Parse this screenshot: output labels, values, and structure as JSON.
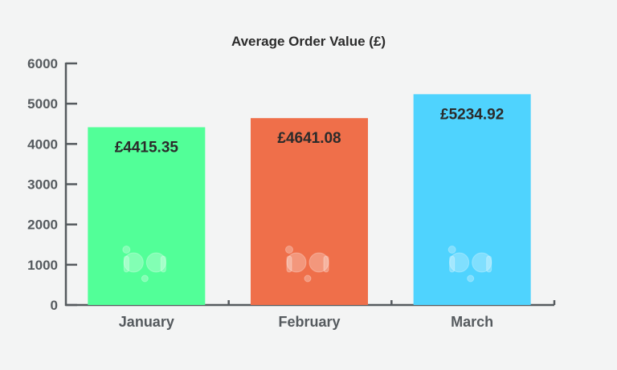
{
  "colors": {
    "background": "#f3f4f4",
    "axis": "#555a5e",
    "text_dark": "#2b2b2b",
    "bar_colors": [
      "#52ff98",
      "#ef6f4a",
      "#4fd3fe"
    ]
  },
  "watermark_icon": "bp-logo-icon",
  "chart_data": {
    "type": "bar",
    "title": "Average Order Value (£)",
    "xlabel": "",
    "ylabel": "",
    "categories": [
      "January",
      "February",
      "March"
    ],
    "values": [
      4415.35,
      4641.08,
      5234.92
    ],
    "data_labels": [
      "£4415.35",
      "£4641.08",
      "£5234.92"
    ],
    "ylim": [
      0,
      6000
    ],
    "yticks": [
      0,
      1000,
      2000,
      3000,
      4000,
      5000,
      6000
    ],
    "ytick_labels": [
      "0",
      "1000",
      "2000",
      "3000",
      "4000",
      "5000",
      "6000"
    ],
    "grid": false,
    "legend": "none"
  }
}
